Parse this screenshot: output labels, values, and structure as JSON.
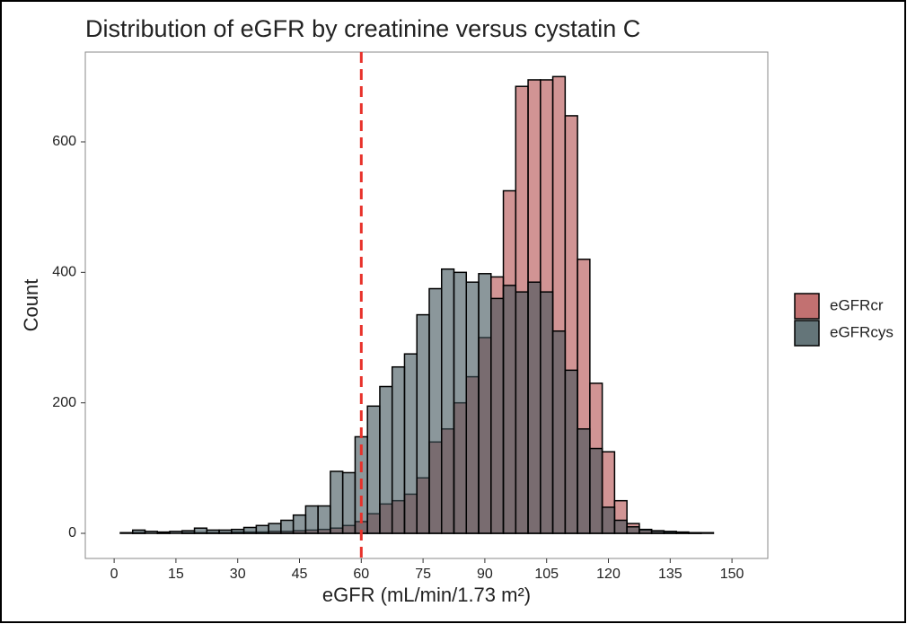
{
  "chart_data": {
    "type": "histogram",
    "title": "Distribution of eGFR by creatinine versus cystatin C",
    "x_label": "eGFR  (mL/min/1.73 m²)",
    "y_label": "Count",
    "bins": [
      1.5,
      4.5,
      7.5,
      10.5,
      13.5,
      16.5,
      19.5,
      22.5,
      25.5,
      28.5,
      31.5,
      34.5,
      37.5,
      40.5,
      43.5,
      46.5,
      49.5,
      52.5,
      55.5,
      58.5,
      61.5,
      64.5,
      67.5,
      70.5,
      73.5,
      76.5,
      79.5,
      82.5,
      85.5,
      88.5,
      91.5,
      94.5,
      97.5,
      100.5,
      103.5,
      106.5,
      109.5,
      112.5,
      115.5,
      118.5,
      121.5,
      124.5,
      127.5,
      130.5,
      133.5,
      136.5,
      139.5,
      142.5,
      145.5,
      148.5
    ],
    "series": [
      {
        "name": "eGFRcr",
        "color": "#b34d4d",
        "values": [
          0,
          1,
          0,
          1,
          0,
          1,
          1,
          1,
          1,
          2,
          2,
          2,
          3,
          3,
          4,
          5,
          6,
          8,
          12,
          18,
          30,
          45,
          50,
          60,
          85,
          140,
          160,
          200,
          240,
          300,
          393,
          525,
          685,
          695,
          695,
          700,
          640,
          420,
          230,
          125,
          50,
          15,
          5,
          3,
          2,
          1,
          1,
          0,
          0
        ]
      },
      {
        "name": "eGFRcys",
        "color": "#3d5258",
        "values": [
          1,
          5,
          3,
          2,
          3,
          4,
          8,
          5,
          5,
          6,
          9,
          12,
          15,
          20,
          28,
          42,
          42,
          95,
          93,
          148,
          195,
          225,
          255,
          275,
          335,
          375,
          405,
          400,
          385,
          398,
          360,
          380,
          370,
          385,
          370,
          310,
          250,
          160,
          130,
          40,
          20,
          10,
          6,
          4,
          3,
          2,
          1,
          1,
          0
        ]
      }
    ],
    "vline": 60,
    "vline_color": "#e8312a",
    "xlim": [
      -7,
      158.7
    ],
    "xticks": [
      0,
      15,
      30,
      45,
      60,
      75,
      90,
      105,
      120,
      135,
      150
    ],
    "ylim": [
      -38.5,
      737.6
    ],
    "yticks": [
      0,
      200,
      400,
      600
    ],
    "grid": false,
    "legend": "right"
  }
}
